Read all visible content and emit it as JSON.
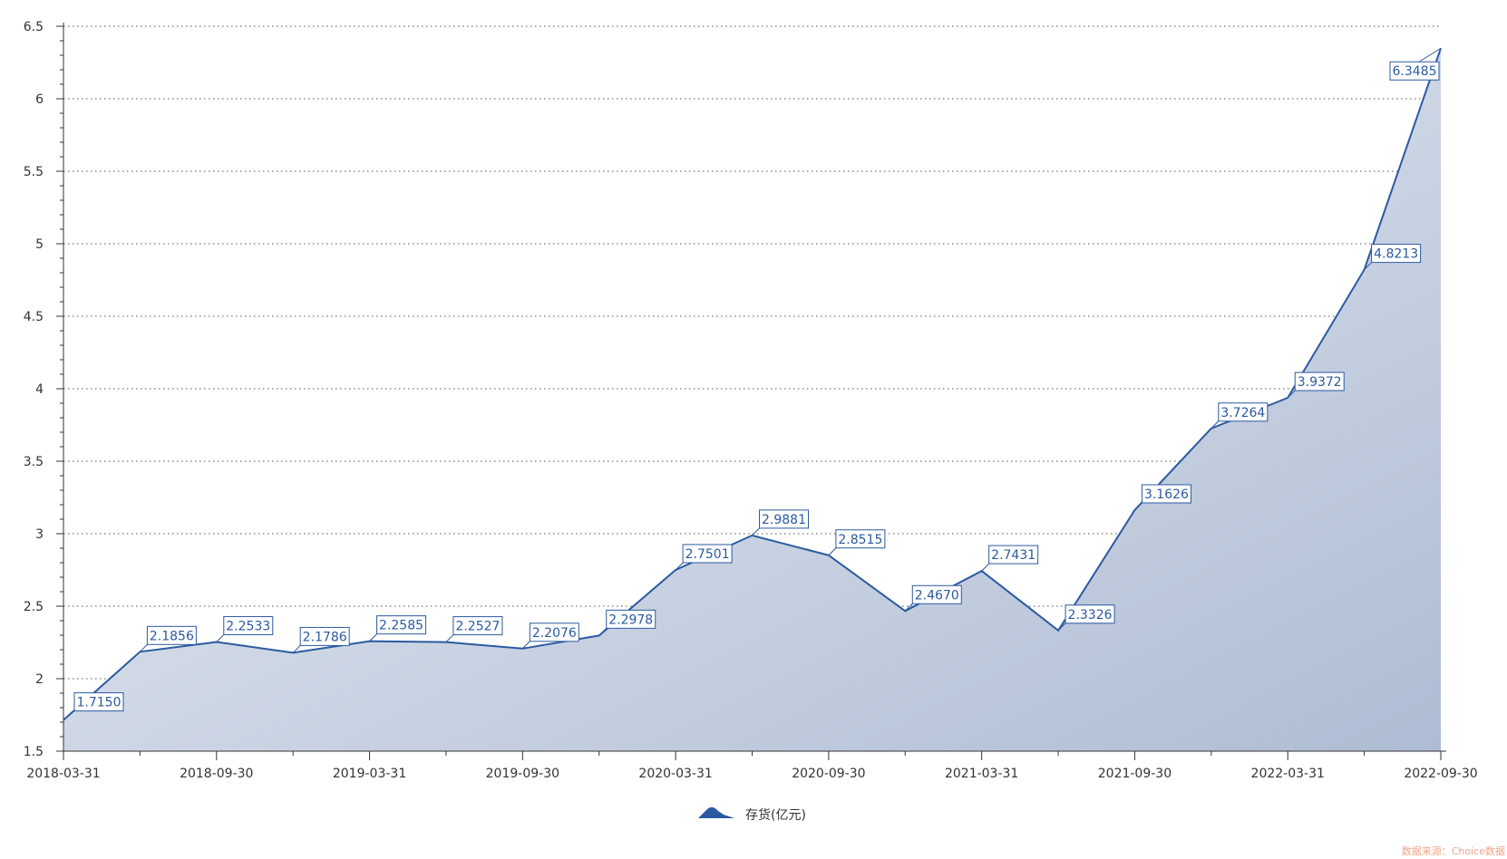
{
  "chart_data": {
    "type": "area",
    "title": "",
    "xlabel": "",
    "ylabel": "",
    "x": [
      "2018-03-31",
      "2018-06-30",
      "2018-09-30",
      "2018-12-31",
      "2019-03-31",
      "2019-06-30",
      "2019-09-30",
      "2019-12-31",
      "2020-03-31",
      "2020-06-30",
      "2020-09-30",
      "2020-12-31",
      "2021-03-31",
      "2021-06-30",
      "2021-09-30",
      "2021-12-31",
      "2022-03-31",
      "2022-06-30",
      "2022-09-30"
    ],
    "x_tick_labels": [
      "2018-03-31",
      "2018-09-30",
      "2019-03-31",
      "2019-09-30",
      "2020-03-31",
      "2020-09-30",
      "2021-03-31",
      "2021-09-30",
      "2022-03-31",
      "2022-09-30"
    ],
    "series": [
      {
        "name": "存货(亿元)",
        "values": [
          1.715,
          2.1856,
          2.2533,
          2.1786,
          2.2585,
          2.2527,
          2.2076,
          2.2978,
          2.7501,
          2.9881,
          2.8515,
          2.467,
          2.7431,
          2.3326,
          3.1626,
          3.7264,
          3.9372,
          4.8213,
          6.3485
        ],
        "labels": [
          "1.7150",
          "2.1856",
          "2.2533",
          "2.1786",
          "2.2585",
          "2.2527",
          "2.2076",
          "2.2978",
          "2.7501",
          "2.9881",
          "2.8515",
          "2.4670",
          "2.7431",
          "2.3326",
          "3.1626",
          "3.7264",
          "3.9372",
          "4.8213",
          "6.3485"
        ]
      }
    ],
    "ylim": [
      1.5,
      6.5
    ],
    "y_ticks": [
      1.5,
      2,
      2.5,
      3,
      3.5,
      4,
      4.5,
      5,
      5.5,
      6,
      6.5
    ],
    "y_tick_labels": [
      "1.5",
      "2",
      "2.5",
      "3",
      "3.5",
      "4",
      "4.5",
      "5",
      "5.5",
      "6",
      "6.5"
    ],
    "grid": true,
    "legend_position": "bottom-center",
    "colors": {
      "line": "#2b5aa0",
      "area_top": "#e6eaf2",
      "area_bottom": "#b3c1d7",
      "grid": "#555555",
      "axis": "#333333"
    }
  },
  "source_note": "数据来源：Choice数据"
}
